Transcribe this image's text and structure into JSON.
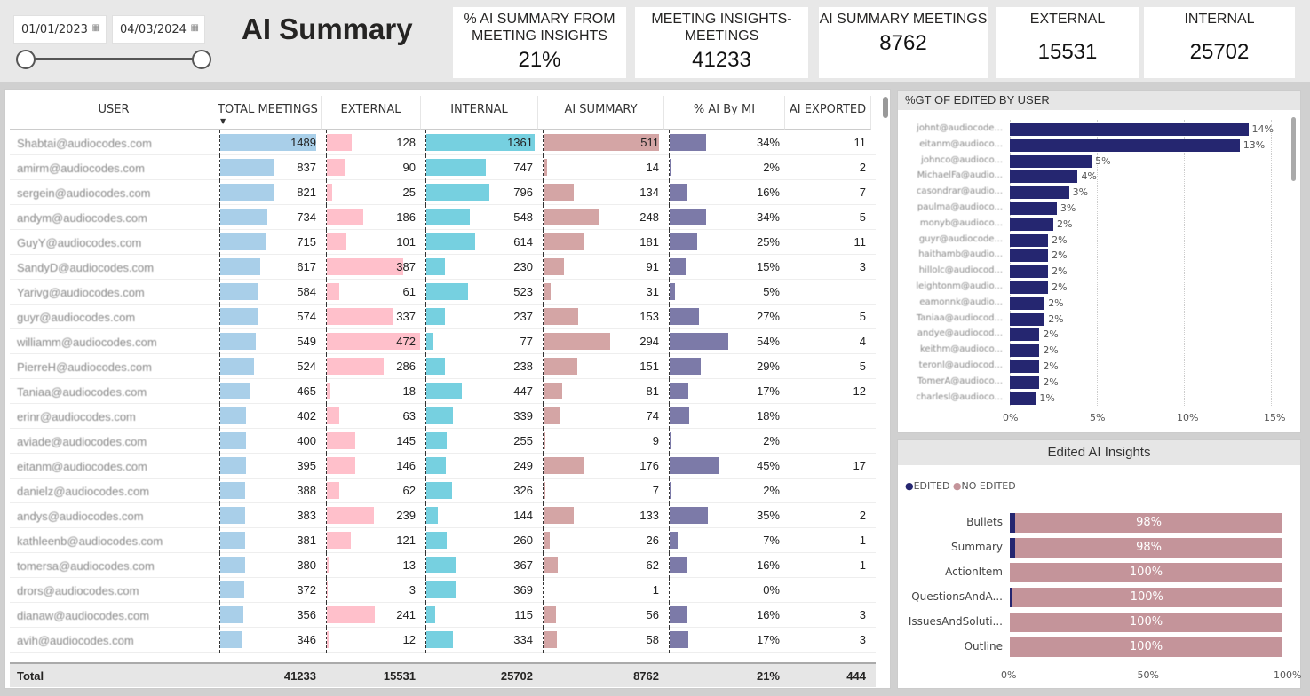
{
  "filters": {
    "start_date": "01/01/2023",
    "end_date": "04/03/2024",
    "calendar_icon": "calendar-icon",
    "slider_range": [
      0,
      1
    ]
  },
  "title": "AI Summary",
  "kpis": [
    {
      "label": "% AI SUMMARY FROM MEETING INSIGHTS",
      "value": "21%"
    },
    {
      "label": "MEETING INSIGHTS-MEETINGS",
      "value": "41233"
    },
    {
      "label": "AI SUMMARY MEETINGS",
      "value": "8762"
    },
    {
      "label": "EXTERNAL",
      "value": "15531"
    },
    {
      "label": "INTERNAL",
      "value": "25702"
    }
  ],
  "table": {
    "columns": [
      "USER",
      "TOTAL MEETINGS",
      "EXTERNAL",
      "INTERNAL",
      "AI SUMMARY",
      "% AI By MI",
      "AI EXPORTED"
    ],
    "sort_column": "TOTAL MEETINGS",
    "sort_direction": "descending",
    "bar_colors": [
      "#a9cfe9",
      "#ffc0cb",
      "#76d0e0",
      "#d4a5a5",
      "#7c7aa8"
    ],
    "rows": [
      [
        "Shabtai@audiocodes.com",
        "1489",
        "128",
        "1361",
        "511",
        "34%",
        "11"
      ],
      [
        "amirm@audiocodes.com",
        "837",
        "90",
        "747",
        "14",
        "2%",
        "2"
      ],
      [
        "sergein@audiocodes.com",
        "821",
        "25",
        "796",
        "134",
        "16%",
        "7"
      ],
      [
        "andym@audiocodes.com",
        "734",
        "186",
        "548",
        "248",
        "34%",
        "5"
      ],
      [
        "GuyY@audiocodes.com",
        "715",
        "101",
        "614",
        "181",
        "25%",
        "11"
      ],
      [
        "SandyD@audiocodes.com",
        "617",
        "387",
        "230",
        "91",
        "15%",
        "3"
      ],
      [
        "Yarivg@audiocodes.com",
        "584",
        "61",
        "523",
        "31",
        "5%",
        ""
      ],
      [
        "guyr@audiocodes.com",
        "574",
        "337",
        "237",
        "153",
        "27%",
        "5"
      ],
      [
        "williamm@audiocodes.com",
        "549",
        "472",
        "77",
        "294",
        "54%",
        "4"
      ],
      [
        "PierreH@audiocodes.com",
        "524",
        "286",
        "238",
        "151",
        "29%",
        "5"
      ],
      [
        "Taniaa@audiocodes.com",
        "465",
        "18",
        "447",
        "81",
        "17%",
        "12"
      ],
      [
        "erinr@audiocodes.com",
        "402",
        "63",
        "339",
        "74",
        "18%",
        ""
      ],
      [
        "aviade@audiocodes.com",
        "400",
        "145",
        "255",
        "9",
        "2%",
        ""
      ],
      [
        "eitanm@audiocodes.com",
        "395",
        "146",
        "249",
        "176",
        "45%",
        "17"
      ],
      [
        "danielz@audiocodes.com",
        "388",
        "62",
        "326",
        "7",
        "2%",
        ""
      ],
      [
        "andys@audiocodes.com",
        "383",
        "239",
        "144",
        "133",
        "35%",
        "2"
      ],
      [
        "kathleenb@audiocodes.com",
        "381",
        "121",
        "260",
        "26",
        "7%",
        "1"
      ],
      [
        "tomersa@audiocodes.com",
        "380",
        "13",
        "367",
        "62",
        "16%",
        "1"
      ],
      [
        "drors@audiocodes.com",
        "372",
        "3",
        "369",
        "1",
        "0%",
        ""
      ],
      [
        "dianaw@audiocodes.com",
        "356",
        "241",
        "115",
        "56",
        "16%",
        "3"
      ],
      [
        "avih@audiocodes.com",
        "346",
        "12",
        "334",
        "58",
        "17%",
        "3"
      ]
    ],
    "totals": [
      "Total",
      "41233",
      "15531",
      "25702",
      "8762",
      "21%",
      "444"
    ]
  },
  "chart_data": [
    {
      "type": "bar",
      "orientation": "horizontal",
      "title": "%GT OF EDITED BY USER",
      "categories": [
        "johnt@audiocode...",
        "eitanm@audioco...",
        "johnco@audioco...",
        "MichaelFa@audio...",
        "casondrar@audio...",
        "paulma@audioco...",
        "monyb@audioco...",
        "guyr@audiocode...",
        "haithamb@audio...",
        "hillolc@audiocod...",
        "leightonm@audio...",
        "eamonnk@audio...",
        "Taniaa@audiocod...",
        "andye@audiocod...",
        "keithm@audioco...",
        "teronl@audiocod...",
        "TomerA@audioco...",
        "charlesl@audioco..."
      ],
      "values": [
        13.7,
        13.2,
        4.7,
        3.9,
        3.4,
        2.7,
        2.5,
        2.2,
        2.2,
        2.2,
        2.2,
        2.0,
        2.0,
        1.7,
        1.7,
        1.7,
        1.7,
        1.5
      ],
      "labels": [
        "14%",
        "13%",
        "5%",
        "4%",
        "3%",
        "3%",
        "2%",
        "2%",
        "2%",
        "2%",
        "2%",
        "2%",
        "2%",
        "2%",
        "2%",
        "2%",
        "2%",
        "1%"
      ],
      "xlim": [
        0,
        15
      ],
      "xticks": [
        "0%",
        "5%",
        "10%",
        "15%"
      ],
      "color": "#252670",
      "grid": true
    },
    {
      "type": "bar",
      "orientation": "horizontal",
      "stacked": "100%",
      "title": "Edited AI Insights",
      "legend": [
        "EDITED",
        "NO EDITED"
      ],
      "legend_position": "top-left",
      "colors": [
        "#252670",
        "#c4949a"
      ],
      "categories": [
        "Bullets",
        "Summary",
        "ActionItem",
        "QuestionsAndA...",
        "IssuesAndSoluti...",
        "Outline"
      ],
      "series": [
        {
          "name": "EDITED",
          "values": [
            2,
            2,
            0,
            0.5,
            0,
            0
          ]
        },
        {
          "name": "NO EDITED",
          "values": [
            98,
            98,
            100,
            99.5,
            100,
            100
          ]
        }
      ],
      "labels": [
        "98%",
        "98%",
        "100%",
        "100%",
        "100%",
        "100%"
      ],
      "xticks": [
        "0%",
        "50%",
        "100%"
      ]
    }
  ]
}
